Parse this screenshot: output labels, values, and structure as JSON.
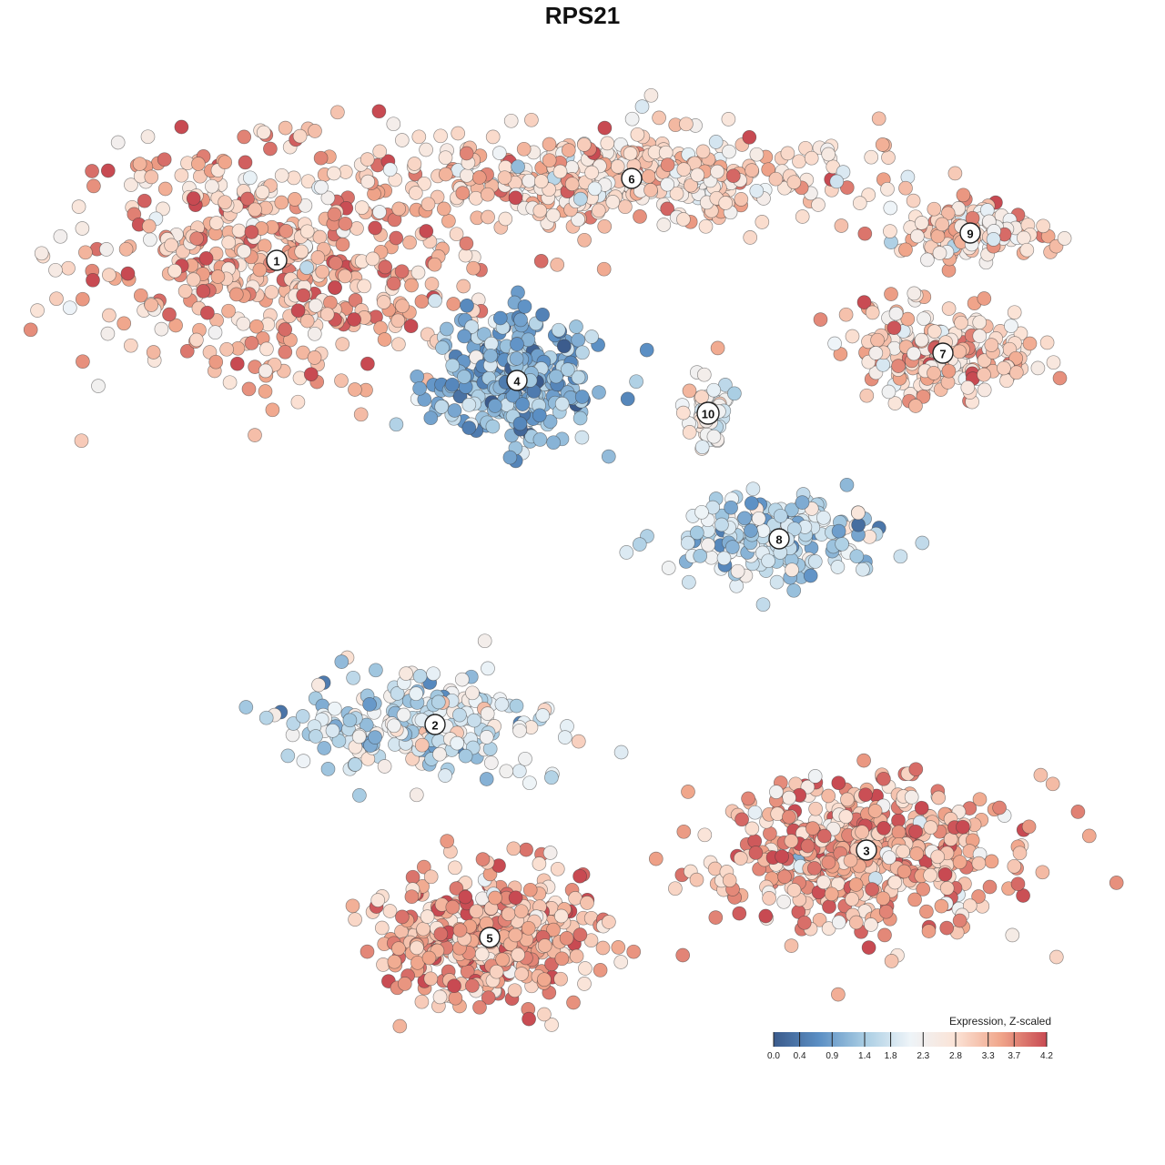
{
  "chart_data": {
    "type": "scatter",
    "title": "RPS21",
    "description_axes": "embedding axes unlabeled, no ticks",
    "grid": false,
    "legend_placement": "bottom-right",
    "color_scale": {
      "title": "Expression, Z-scaled",
      "min": 0.0,
      "max": 4.2,
      "ticks": [
        0.0,
        0.4,
        0.9,
        1.4,
        1.8,
        2.3,
        2.8,
        3.3,
        3.7,
        4.2
      ],
      "tick_labels": [
        "0.0",
        "0.4",
        "0.9",
        "1.4",
        "1.8",
        "2.3",
        "2.8",
        "3.3",
        "3.7",
        "4.2"
      ],
      "colors": [
        "#3b5b8c",
        "#5b8fc4",
        "#a9cde3",
        "#eef4f8",
        "#fbe3d6",
        "#f0a58a",
        "#c84a52"
      ]
    },
    "clusters": [
      {
        "label": "1",
        "x": -5.6,
        "y": 5.9,
        "mean_expression": 3.2,
        "spread": [
          3.3,
          2.0
        ]
      },
      {
        "label": "2",
        "x": -2.7,
        "y": -2.6,
        "mean_expression": 1.9,
        "spread": [
          2.2,
          0.9
        ]
      },
      {
        "label": "3",
        "x": 5.2,
        "y": -4.9,
        "mean_expression": 3.3,
        "spread": [
          2.5,
          1.2
        ]
      },
      {
        "label": "4",
        "x": -1.2,
        "y": 3.7,
        "mean_expression": 1.1,
        "spread": [
          1.3,
          1.0
        ]
      },
      {
        "label": "5",
        "x": -1.7,
        "y": -6.5,
        "mean_expression": 3.4,
        "spread": [
          1.7,
          1.1
        ]
      },
      {
        "label": "6",
        "x": 0.9,
        "y": 7.4,
        "mean_expression": 2.9,
        "spread": [
          3.6,
          0.7
        ]
      },
      {
        "label": "7",
        "x": 6.6,
        "y": 4.2,
        "mean_expression": 3.0,
        "spread": [
          1.6,
          0.8
        ]
      },
      {
        "label": "8",
        "x": 3.6,
        "y": 0.8,
        "mean_expression": 1.6,
        "spread": [
          1.7,
          0.7
        ]
      },
      {
        "label": "9",
        "x": 7.1,
        "y": 6.4,
        "mean_expression": 3.0,
        "spread": [
          1.2,
          0.5
        ]
      },
      {
        "label": "10",
        "x": 2.3,
        "y": 3.1,
        "mean_expression": 2.3,
        "spread": [
          0.4,
          0.6
        ]
      }
    ]
  }
}
